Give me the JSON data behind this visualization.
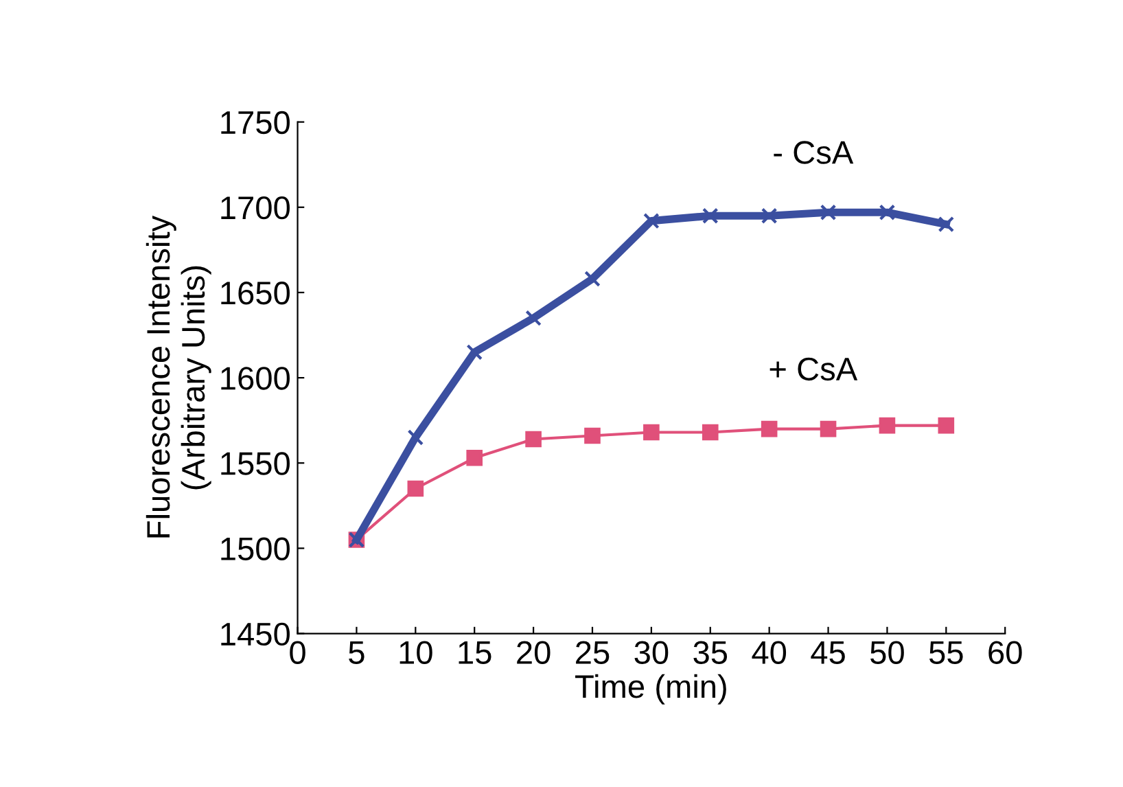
{
  "chart_data": {
    "type": "line",
    "xlabel": "Time (min)",
    "ylabel": "Fluorescence Intensity\n(Arbitrary Units)",
    "x": [
      5,
      10,
      15,
      20,
      25,
      30,
      35,
      40,
      45,
      50,
      55
    ],
    "series": [
      {
        "name": "- CsA",
        "color": "#3b4fa0",
        "marker": "cross",
        "values": [
          1505,
          1565,
          1615,
          1635,
          1658,
          1692,
          1695,
          1695,
          1697,
          1697,
          1690
        ]
      },
      {
        "name": "+ CsA",
        "color": "#e0507a",
        "marker": "square",
        "values": [
          1505,
          1535,
          1553,
          1564,
          1566,
          1568,
          1568,
          1570,
          1570,
          1572,
          1572
        ]
      }
    ],
    "xlim": [
      0,
      60
    ],
    "xticks": [
      0,
      5,
      10,
      15,
      20,
      25,
      30,
      35,
      40,
      45,
      50,
      55,
      60
    ],
    "ylim": [
      1450,
      1750
    ],
    "yticks": [
      1450,
      1500,
      1550,
      1600,
      1650,
      1700,
      1750
    ],
    "grid": false,
    "legend": false,
    "line_style": "solid"
  }
}
